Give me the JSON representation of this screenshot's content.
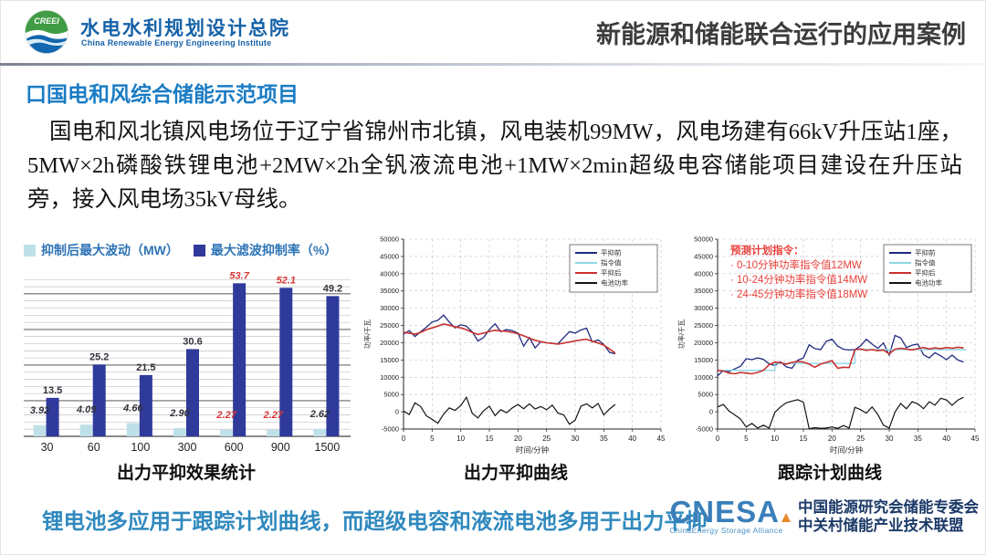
{
  "header": {
    "logo": {
      "acronym": "CREEI",
      "org_cn": "水电水利规划设计总院",
      "org_en": "China Renewable Energy Engineering Institute"
    },
    "title": "新能源和储能联合运行的应用案例"
  },
  "section": {
    "heading": "口国电和风综合储能示范项目"
  },
  "body": {
    "paragraph": "国电和风北镇风电场位于辽宁省锦州市北镇，风电装机99MW，风电场建有66kV升压站1座，5MW×2h磷酸铁锂电池+2MW×2h全钒液流电池+1MW×2min超级电容储能项目建设在升压站旁，接入风电场35kV母线。"
  },
  "footer": {
    "conclusion": "锂电池多应用于跟踪计划曲线，而超级电容和液流电池多用于出力平抑",
    "cnesa": {
      "logo_text": "CNESA",
      "logo_sub": "ChinaEnergy Storage Alliance",
      "org_line1": "中国能源研究会储能专委会",
      "org_line2": "中关村储能产业技术联盟"
    }
  },
  "chart_data": [
    {
      "type": "bar",
      "title": "出力平抑效果统计",
      "categories": [
        "30",
        "60",
        "100",
        "300",
        "600",
        "900",
        "1500"
      ],
      "series": [
        {
          "name": "抑制后最大波动（MW）",
          "color": "#bfe0e8",
          "italic": true,
          "values": [
            3.92,
            4.09,
            4.66,
            2.9,
            2.27,
            2.27,
            2.62
          ],
          "labels": [
            "3.92",
            "4.09",
            "4.66",
            "2.90",
            "2.27",
            "2.27",
            "2.62"
          ]
        },
        {
          "name": "最大滤波抑制率（%）",
          "color": "#2f3a9b",
          "italic": false,
          "values": [
            13.5,
            25.2,
            21.5,
            30.6,
            53.7,
            52.1,
            49.2
          ],
          "labels": [
            "13.5",
            "25.2",
            "21.5",
            "30.6",
            "53.7",
            "52.1",
            "49.2"
          ]
        }
      ],
      "highlight_indices": [
        4,
        5
      ],
      "highlight_color": "#d63434",
      "label_color": "#33333d",
      "ylim": [
        0,
        57
      ],
      "grid_step": 2.5,
      "grid_major_every": 5
    },
    {
      "type": "line",
      "title": "出力平抑曲线",
      "xlabel": "时间/分钟",
      "ylabel": "功率/千瓦",
      "xlim": [
        0,
        45
      ],
      "xstep": 5,
      "ylim": [
        -5000,
        50000
      ],
      "ystep": 5000,
      "legend_position": "top-right",
      "series": [
        {
          "name": "平抑前",
          "color": "#1f2a7e",
          "width": 1.3,
          "x": [
            0,
            1,
            2,
            3,
            4,
            5,
            6,
            7,
            8,
            9,
            10,
            11,
            12,
            13,
            14,
            15,
            16,
            17,
            18,
            19,
            20,
            21,
            22,
            23,
            24,
            25,
            26,
            27,
            28,
            29,
            30,
            31,
            32,
            33,
            34,
            35,
            36,
            37
          ],
          "y": [
            22500,
            23500,
            21800,
            23200,
            24500,
            26000,
            26500,
            28000,
            26000,
            24300,
            25200,
            24800,
            23200,
            20500,
            21500,
            23800,
            25500,
            23200,
            23800,
            23500,
            22800,
            19000,
            21500,
            18500,
            20300,
            20000,
            19800,
            19700,
            21500,
            23200,
            22800,
            23700,
            24200,
            20200,
            20800,
            19500,
            17200,
            16800
          ]
        },
        {
          "name": "指令值",
          "color": "#8fd6e4",
          "width": 1.2,
          "x": [
            0,
            1,
            2,
            3,
            4,
            5,
            6,
            7,
            8,
            9,
            10,
            11,
            12,
            13,
            14,
            15,
            16,
            17,
            18,
            19,
            20,
            21,
            22,
            23,
            24,
            25,
            26,
            27,
            28,
            29,
            30,
            31,
            32,
            33,
            34,
            35,
            36,
            37
          ],
          "y": [
            23000,
            22800,
            22500,
            23000,
            23800,
            24300,
            24800,
            25400,
            25100,
            24600,
            24300,
            23800,
            23000,
            22400,
            22800,
            23300,
            23600,
            23400,
            23300,
            23000,
            22600,
            22000,
            21300,
            20700,
            20300,
            20000,
            19800,
            19600,
            19900,
            20200,
            20500,
            20800,
            21000,
            20400,
            19900,
            19300,
            18200,
            17000
          ]
        },
        {
          "name": "平抑后",
          "color": "#c93030",
          "width": 1.6,
          "x": [
            0,
            1,
            2,
            3,
            4,
            5,
            6,
            7,
            8,
            9,
            10,
            11,
            12,
            13,
            14,
            15,
            16,
            17,
            18,
            19,
            20,
            21,
            22,
            23,
            24,
            25,
            26,
            27,
            28,
            29,
            30,
            31,
            32,
            33,
            34,
            35,
            36,
            37
          ],
          "y": [
            23000,
            22800,
            22500,
            23000,
            23800,
            24300,
            24800,
            25400,
            25100,
            24600,
            24300,
            23800,
            23000,
            22400,
            22800,
            23300,
            23600,
            23400,
            23300,
            23000,
            22600,
            22000,
            21300,
            20700,
            20300,
            20000,
            19800,
            19600,
            19900,
            20200,
            20500,
            20800,
            21000,
            20400,
            19900,
            19300,
            18200,
            17000
          ]
        },
        {
          "name": "电池功率",
          "color": "#141414",
          "width": 1.2,
          "x": [
            0,
            1,
            2,
            3,
            4,
            5,
            6,
            7,
            8,
            9,
            10,
            11,
            12,
            13,
            14,
            15,
            16,
            17,
            18,
            19,
            20,
            21,
            22,
            23,
            24,
            25,
            26,
            27,
            28,
            29,
            30,
            31,
            32,
            33,
            34,
            35,
            36,
            37
          ],
          "y": [
            200,
            -800,
            2600,
            1500,
            -1200,
            -2200,
            -3300,
            -700,
            1100,
            400,
            1800,
            4200,
            -400,
            -1800,
            300,
            1600,
            -1100,
            600,
            -300,
            1100,
            2100,
            900,
            2300,
            800,
            1500,
            600,
            1900,
            -400,
            -900,
            -3600,
            -2400,
            1600,
            2300,
            1100,
            2400,
            -900,
            800,
            2100
          ]
        }
      ]
    },
    {
      "type": "line",
      "title": "跟踪计划曲线",
      "xlabel": "时间/分钟",
      "ylabel": "功率/千瓦",
      "xlim": [
        0,
        45
      ],
      "xstep": 5,
      "ylim": [
        -5000,
        50000
      ],
      "ystep": 5000,
      "legend_position": "top-right",
      "note": {
        "color": "#e8403a",
        "title": "预测计划指令：",
        "items": [
          "· 0-10分钟功率指令值12MW",
          "· 10-24分钟功率指令值14MW",
          "· 24-45分钟功率指令值18MW"
        ]
      },
      "series": [
        {
          "name": "平抑前",
          "color": "#1f2a7e",
          "width": 1.3,
          "x": [
            0,
            1,
            2,
            3,
            4,
            5,
            6,
            7,
            8,
            9,
            10,
            11,
            12,
            13,
            14,
            15,
            16,
            17,
            18,
            19,
            20,
            21,
            22,
            23,
            24,
            25,
            26,
            27,
            28,
            29,
            30,
            31,
            32,
            33,
            34,
            35,
            36,
            37,
            38,
            39,
            40,
            41,
            42,
            43
          ],
          "y": [
            10400,
            12000,
            11600,
            12400,
            13200,
            15400,
            15100,
            15600,
            15200,
            13900,
            13400,
            14500,
            13000,
            12600,
            14900,
            15600,
            19400,
            18300,
            18000,
            20400,
            21000,
            19000,
            18100,
            17900,
            18000,
            19100,
            21000,
            19600,
            18400,
            19900,
            16400,
            22100,
            21400,
            18600,
            19300,
            19600,
            16500,
            15600,
            17100,
            16200,
            15100,
            16400,
            15000,
            14400
          ]
        },
        {
          "name": "指令值",
          "color": "#8fd6e4",
          "width": 1.4,
          "x": [
            0,
            10,
            10,
            24,
            24,
            43.5
          ],
          "y": [
            12000,
            12000,
            14000,
            14000,
            18000,
            18000
          ]
        },
        {
          "name": "平抑后",
          "color": "#c93030",
          "width": 1.6,
          "x": [
            0,
            1,
            2,
            3,
            4,
            5,
            6,
            7,
            8,
            9,
            10,
            11,
            12,
            13,
            14,
            15,
            16,
            17,
            18,
            19,
            20,
            21,
            22,
            23,
            24,
            25,
            26,
            27,
            28,
            29,
            30,
            31,
            32,
            33,
            34,
            35,
            36,
            37,
            38,
            39,
            40,
            41,
            42,
            43
          ],
          "y": [
            12000,
            11800,
            11200,
            11000,
            11400,
            11200,
            11000,
            11400,
            12000,
            13600,
            14400,
            14200,
            13800,
            14300,
            14600,
            14400,
            13800,
            12900,
            13800,
            14300,
            14800,
            12600,
            12900,
            12800,
            18000,
            18200,
            17800,
            18000,
            17700,
            17900,
            16800,
            18100,
            18400,
            18200,
            17900,
            18300,
            18600,
            18200,
            18500,
            18300,
            18600,
            18400,
            18700,
            18500
          ]
        },
        {
          "name": "电池功率",
          "color": "#141414",
          "width": 1.2,
          "x": [
            0,
            1,
            2,
            3,
            4,
            5,
            6,
            7,
            8,
            9,
            10,
            11,
            12,
            13,
            14,
            15,
            16,
            17,
            18,
            19,
            20,
            21,
            22,
            23,
            24,
            25,
            26,
            27,
            28,
            29,
            30,
            31,
            32,
            33,
            34,
            35,
            36,
            37,
            38,
            39,
            40,
            41,
            42,
            43
          ],
          "y": [
            1400,
            2100,
            200,
            -900,
            -2100,
            -4400,
            -3400,
            -4700,
            -3900,
            -4700,
            -200,
            1400,
            2600,
            3100,
            3500,
            2800,
            -4900,
            -4600,
            -4800,
            -4700,
            -4400,
            -4800,
            -4000,
            -4700,
            1300,
            600,
            -400,
            1400,
            -800,
            -3900,
            -4700,
            -100,
            2400,
            900,
            2900,
            2300,
            900,
            2900,
            1900,
            3900,
            3400,
            1900,
            3400,
            4200
          ]
        }
      ]
    }
  ]
}
